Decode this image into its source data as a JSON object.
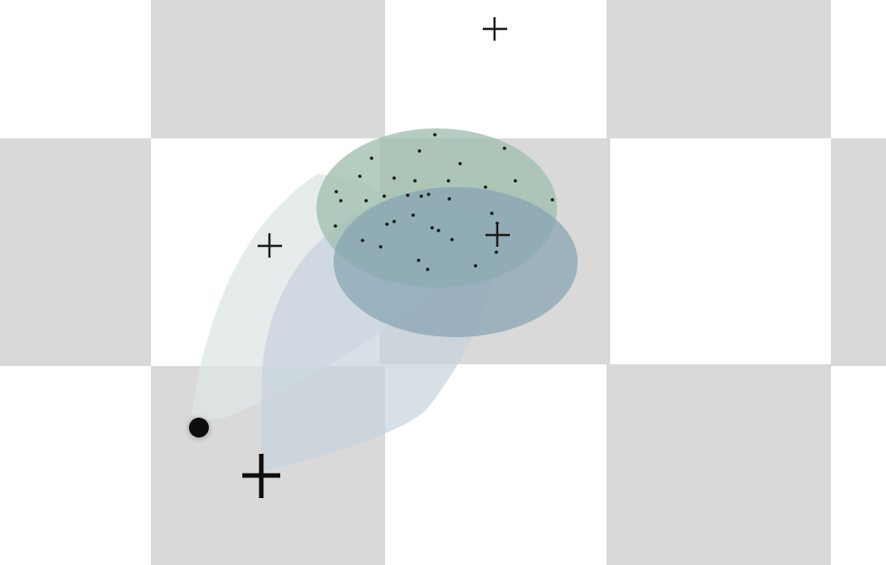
{
  "colors": {
    "background": "#ffffff",
    "checker_tile": "#d9d9d9",
    "ellipse_green": "#a9c6b6",
    "ellipse_blue": "#8fa9b8",
    "tail_light": "#dde6e4",
    "tail_blue": "#c9d4de",
    "marker": "#111111"
  },
  "icons": {
    "crosshair": "plus-crosshair-icon",
    "dot": "filled-circle-icon"
  }
}
